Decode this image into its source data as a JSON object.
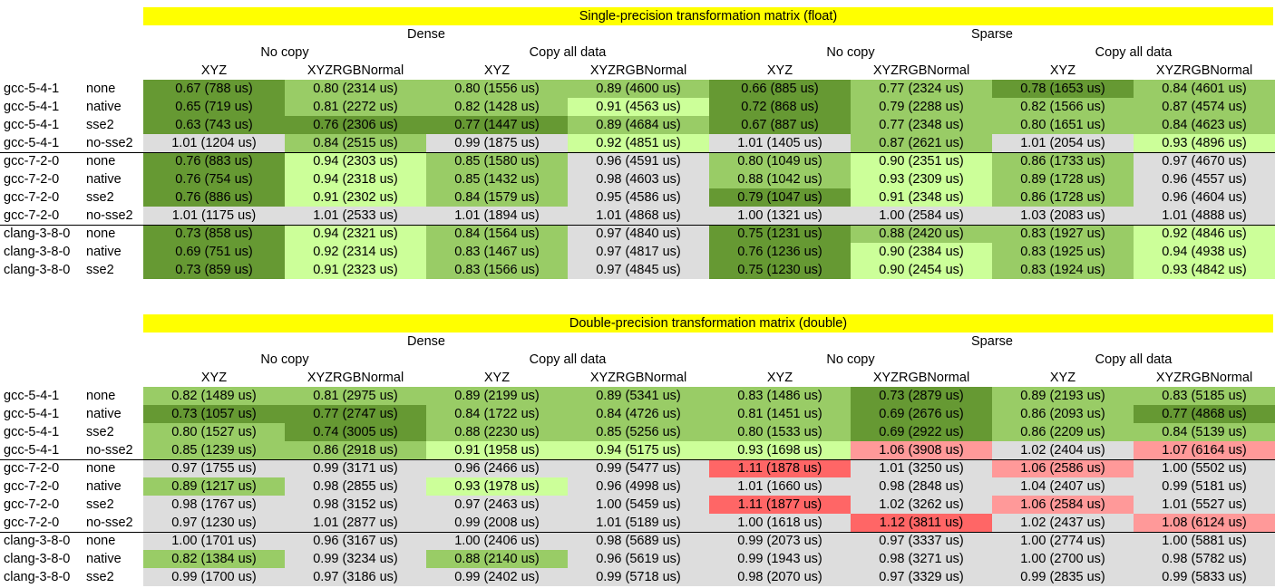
{
  "colors": {
    "title_bg": "#ffff00",
    "g0": "#669933",
    "g1": "#99cc66",
    "g2": "#ccff99",
    "gray": "#dddddd",
    "r1": "#ff9999",
    "r2": "#ff6666"
  },
  "columns": {
    "groups": [
      "Dense",
      "Sparse"
    ],
    "subgroups": [
      "No copy",
      "Copy all data",
      "No copy",
      "Copy all data"
    ],
    "cols": [
      "XYZ",
      "XYZRGBNormal",
      "XYZ",
      "XYZRGBNormal",
      "XYZ",
      "XYZRGBNormal",
      "XYZ",
      "XYZRGBNormal"
    ]
  },
  "tables": [
    {
      "title": "Single-precision transformation matrix (float)",
      "rows": [
        {
          "compiler": "gcc-5-4-1",
          "flag": "none",
          "values": [
            "0.67 (788 us)",
            "0.80 (2314 us)",
            "0.80 (1556 us)",
            "0.89 (4600 us)",
            "0.66 (885 us)",
            "0.77 (2324 us)",
            "0.78 (1653 us)",
            "0.84 (4601 us)"
          ],
          "colors": [
            "g0",
            "g1",
            "g1",
            "g1",
            "g0",
            "g1",
            "g0",
            "g1"
          ]
        },
        {
          "compiler": "gcc-5-4-1",
          "flag": "native",
          "values": [
            "0.65 (719 us)",
            "0.81 (2272 us)",
            "0.82 (1428 us)",
            "0.91 (4563 us)",
            "0.72 (868 us)",
            "0.79 (2288 us)",
            "0.82 (1566 us)",
            "0.87 (4574 us)"
          ],
          "colors": [
            "g0",
            "g1",
            "g1",
            "g2",
            "g0",
            "g1",
            "g1",
            "g1"
          ]
        },
        {
          "compiler": "gcc-5-4-1",
          "flag": "sse2",
          "values": [
            "0.63 (743 us)",
            "0.76 (2306 us)",
            "0.77 (1447 us)",
            "0.89 (4684 us)",
            "0.67 (887 us)",
            "0.77 (2348 us)",
            "0.80 (1651 us)",
            "0.84 (4623 us)"
          ],
          "colors": [
            "g0",
            "g0",
            "g0",
            "g1",
            "g0",
            "g1",
            "g1",
            "g1"
          ]
        },
        {
          "compiler": "gcc-5-4-1",
          "flag": "no-sse2",
          "values": [
            "1.01 (1204 us)",
            "0.84 (2515 us)",
            "0.99 (1875 us)",
            "0.92 (4851 us)",
            "1.01 (1405 us)",
            "0.87 (2621 us)",
            "1.01 (2054 us)",
            "0.93 (4896 us)"
          ],
          "colors": [
            "gray",
            "g1",
            "gray",
            "g2",
            "gray",
            "g1",
            "gray",
            "g2"
          ]
        },
        {
          "compiler": "gcc-7-2-0",
          "flag": "none",
          "values": [
            "0.76 (883 us)",
            "0.94 (2303 us)",
            "0.85 (1580 us)",
            "0.96 (4591 us)",
            "0.80 (1049 us)",
            "0.90 (2351 us)",
            "0.86 (1733 us)",
            "0.97 (4670 us)"
          ],
          "colors": [
            "g0",
            "g2",
            "g1",
            "gray",
            "g1",
            "g2",
            "g1",
            "gray"
          ]
        },
        {
          "compiler": "gcc-7-2-0",
          "flag": "native",
          "values": [
            "0.76 (754 us)",
            "0.94 (2318 us)",
            "0.85 (1432 us)",
            "0.98 (4603 us)",
            "0.88 (1042 us)",
            "0.93 (2309 us)",
            "0.89 (1728 us)",
            "0.96 (4557 us)"
          ],
          "colors": [
            "g0",
            "g2",
            "g1",
            "gray",
            "g1",
            "g2",
            "g1",
            "gray"
          ]
        },
        {
          "compiler": "gcc-7-2-0",
          "flag": "sse2",
          "values": [
            "0.76 (886 us)",
            "0.91 (2302 us)",
            "0.84 (1579 us)",
            "0.95 (4586 us)",
            "0.79 (1047 us)",
            "0.91 (2348 us)",
            "0.86 (1728 us)",
            "0.96 (4604 us)"
          ],
          "colors": [
            "g0",
            "g2",
            "g1",
            "gray",
            "g0",
            "g2",
            "g1",
            "gray"
          ]
        },
        {
          "compiler": "gcc-7-2-0",
          "flag": "no-sse2",
          "values": [
            "1.01 (1175 us)",
            "1.01 (2533 us)",
            "1.01 (1894 us)",
            "1.01 (4868 us)",
            "1.00 (1321 us)",
            "1.00 (2584 us)",
            "1.03 (2083 us)",
            "1.01 (4888 us)"
          ],
          "colors": [
            "gray",
            "gray",
            "gray",
            "gray",
            "gray",
            "gray",
            "gray",
            "gray"
          ]
        },
        {
          "compiler": "clang-3-8-0",
          "flag": "none",
          "values": [
            "0.73 (858 us)",
            "0.94 (2321 us)",
            "0.84 (1564 us)",
            "0.97 (4840 us)",
            "0.75 (1231 us)",
            "0.88 (2420 us)",
            "0.83 (1927 us)",
            "0.92 (4846 us)"
          ],
          "colors": [
            "g0",
            "g2",
            "g1",
            "gray",
            "g0",
            "g1",
            "g1",
            "g2"
          ]
        },
        {
          "compiler": "clang-3-8-0",
          "flag": "native",
          "values": [
            "0.69 (751 us)",
            "0.92 (2314 us)",
            "0.83 (1467 us)",
            "0.97 (4817 us)",
            "0.76 (1236 us)",
            "0.90 (2384 us)",
            "0.83 (1925 us)",
            "0.94 (4938 us)"
          ],
          "colors": [
            "g0",
            "g2",
            "g1",
            "gray",
            "g0",
            "g2",
            "g1",
            "g2"
          ]
        },
        {
          "compiler": "clang-3-8-0",
          "flag": "sse2",
          "values": [
            "0.73 (859 us)",
            "0.91 (2323 us)",
            "0.83 (1566 us)",
            "0.97 (4845 us)",
            "0.75 (1230 us)",
            "0.90 (2454 us)",
            "0.83 (1924 us)",
            "0.93 (4842 us)"
          ],
          "colors": [
            "g0",
            "g2",
            "g1",
            "gray",
            "g0",
            "g2",
            "g1",
            "g2"
          ]
        }
      ]
    },
    {
      "title": "Double-precision transformation matrix (double)",
      "rows": [
        {
          "compiler": "gcc-5-4-1",
          "flag": "none",
          "values": [
            "0.82 (1489 us)",
            "0.81 (2975 us)",
            "0.89 (2199 us)",
            "0.89 (5341 us)",
            "0.83 (1486 us)",
            "0.73 (2879 us)",
            "0.89 (2193 us)",
            "0.83 (5185 us)"
          ],
          "colors": [
            "g1",
            "g1",
            "g1",
            "g1",
            "g1",
            "g0",
            "g1",
            "g1"
          ]
        },
        {
          "compiler": "gcc-5-4-1",
          "flag": "native",
          "values": [
            "0.73 (1057 us)",
            "0.77 (2747 us)",
            "0.84 (1722 us)",
            "0.84 (4726 us)",
            "0.81 (1451 us)",
            "0.69 (2676 us)",
            "0.86 (2093 us)",
            "0.77 (4868 us)"
          ],
          "colors": [
            "g0",
            "g0",
            "g1",
            "g1",
            "g1",
            "g0",
            "g1",
            "g0"
          ]
        },
        {
          "compiler": "gcc-5-4-1",
          "flag": "sse2",
          "values": [
            "0.80 (1527 us)",
            "0.74 (3005 us)",
            "0.88 (2230 us)",
            "0.85 (5256 us)",
            "0.80 (1533 us)",
            "0.69 (2922 us)",
            "0.86 (2209 us)",
            "0.84 (5139 us)"
          ],
          "colors": [
            "g1",
            "g0",
            "g1",
            "g1",
            "g1",
            "g0",
            "g1",
            "g1"
          ]
        },
        {
          "compiler": "gcc-5-4-1",
          "flag": "no-sse2",
          "values": [
            "0.85 (1239 us)",
            "0.86 (2918 us)",
            "0.91 (1958 us)",
            "0.94 (5175 us)",
            "0.93 (1698 us)",
            "1.06 (3908 us)",
            "1.02 (2404 us)",
            "1.07 (6164 us)"
          ],
          "colors": [
            "g1",
            "g1",
            "g2",
            "g2",
            "g2",
            "r1",
            "gray",
            "r1"
          ]
        },
        {
          "compiler": "gcc-7-2-0",
          "flag": "none",
          "values": [
            "0.97 (1755 us)",
            "0.99 (3171 us)",
            "0.96 (2466 us)",
            "0.99 (5477 us)",
            "1.11 (1878 us)",
            "1.01 (3250 us)",
            "1.06 (2586 us)",
            "1.00 (5502 us)"
          ],
          "colors": [
            "gray",
            "gray",
            "gray",
            "gray",
            "r2",
            "gray",
            "r1",
            "gray"
          ]
        },
        {
          "compiler": "gcc-7-2-0",
          "flag": "native",
          "values": [
            "0.89 (1217 us)",
            "0.98 (2855 us)",
            "0.93 (1978 us)",
            "0.96 (4998 us)",
            "1.01 (1660 us)",
            "0.98 (2848 us)",
            "1.04 (2407 us)",
            "0.99 (5181 us)"
          ],
          "colors": [
            "g1",
            "gray",
            "g2",
            "gray",
            "gray",
            "gray",
            "gray",
            "gray"
          ]
        },
        {
          "compiler": "gcc-7-2-0",
          "flag": "sse2",
          "values": [
            "0.98 (1767 us)",
            "0.98 (3152 us)",
            "0.97 (2463 us)",
            "1.00 (5459 us)",
            "1.11 (1877 us)",
            "1.02 (3262 us)",
            "1.06 (2584 us)",
            "1.01 (5527 us)"
          ],
          "colors": [
            "gray",
            "gray",
            "gray",
            "gray",
            "r2",
            "gray",
            "r1",
            "gray"
          ]
        },
        {
          "compiler": "gcc-7-2-0",
          "flag": "no-sse2",
          "values": [
            "0.97 (1230 us)",
            "1.01 (2877 us)",
            "0.99 (2008 us)",
            "1.01 (5189 us)",
            "1.00 (1618 us)",
            "1.12 (3811 us)",
            "1.02 (2437 us)",
            "1.08 (6124 us)"
          ],
          "colors": [
            "gray",
            "gray",
            "gray",
            "gray",
            "gray",
            "r2",
            "gray",
            "r1"
          ]
        },
        {
          "compiler": "clang-3-8-0",
          "flag": "none",
          "values": [
            "1.00 (1701 us)",
            "0.96 (3167 us)",
            "1.00 (2406 us)",
            "0.98 (5689 us)",
            "0.99 (2073 us)",
            "0.97 (3337 us)",
            "1.00 (2774 us)",
            "1.00 (5881 us)"
          ],
          "colors": [
            "gray",
            "gray",
            "gray",
            "gray",
            "gray",
            "gray",
            "gray",
            "gray"
          ]
        },
        {
          "compiler": "clang-3-8-0",
          "flag": "native",
          "values": [
            "0.82 (1384 us)",
            "0.99 (3234 us)",
            "0.88 (2140 us)",
            "0.96 (5619 us)",
            "0.99 (1943 us)",
            "0.98 (3271 us)",
            "1.00 (2700 us)",
            "0.98 (5782 us)"
          ],
          "colors": [
            "g1",
            "gray",
            "g1",
            "gray",
            "gray",
            "gray",
            "gray",
            "gray"
          ]
        },
        {
          "compiler": "clang-3-8-0",
          "flag": "sse2",
          "values": [
            "0.99 (1700 us)",
            "0.97 (3186 us)",
            "0.99 (2402 us)",
            "0.99 (5718 us)",
            "0.98 (2070 us)",
            "0.97 (3329 us)",
            "0.99 (2835 us)",
            "0.99 (5833 us)"
          ],
          "colors": [
            "gray",
            "gray",
            "gray",
            "gray",
            "gray",
            "gray",
            "gray",
            "gray"
          ]
        }
      ]
    }
  ]
}
